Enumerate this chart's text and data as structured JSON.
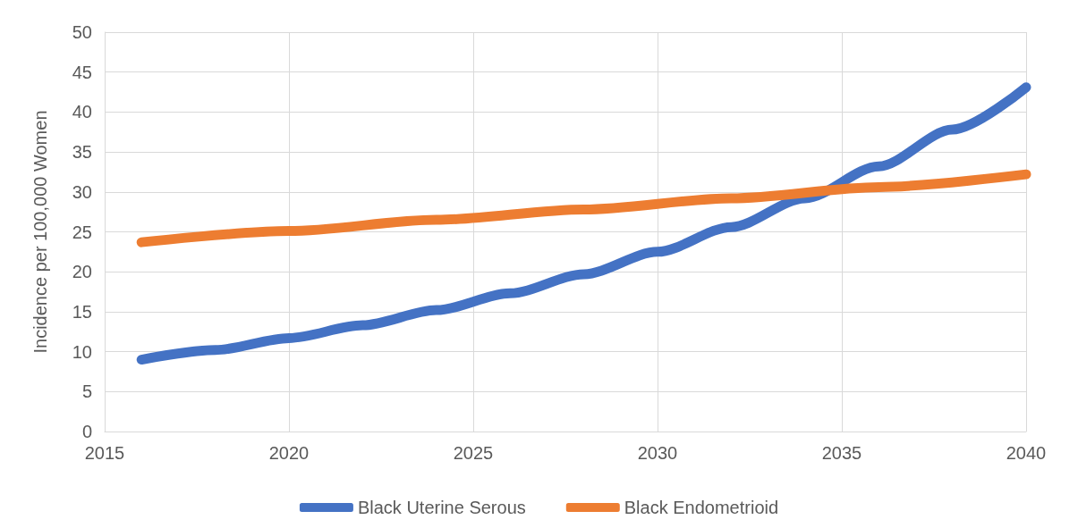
{
  "chart_data": {
    "type": "line",
    "ylabel": "Incidence per 100,000 Women",
    "xlim": [
      2015,
      2040
    ],
    "xticks": [
      2015,
      2020,
      2025,
      2030,
      2035,
      2040
    ],
    "ylim": [
      0,
      50
    ],
    "yticks": [
      0,
      5,
      10,
      15,
      20,
      25,
      30,
      35,
      40,
      45,
      50
    ],
    "grid": true,
    "legend": "bottom",
    "marker": "none",
    "line_style": "solid",
    "series": [
      {
        "name": "Black Uterine Serous",
        "color": "#4472c4",
        "x": [
          2016,
          2018,
          2020,
          2022,
          2024,
          2026,
          2028,
          2030,
          2032,
          2034,
          2036,
          2038,
          2040
        ],
        "values": [
          9.0,
          10.2,
          11.7,
          13.3,
          15.2,
          17.3,
          19.7,
          22.5,
          25.6,
          29.2,
          33.2,
          37.8,
          43.1
        ]
      },
      {
        "name": "Black Endometrioid",
        "color": "#ed7d31",
        "x": [
          2016,
          2020,
          2024,
          2028,
          2032,
          2036,
          2040
        ],
        "values": [
          23.7,
          25.1,
          26.5,
          27.8,
          29.2,
          30.6,
          32.2
        ]
      }
    ]
  }
}
